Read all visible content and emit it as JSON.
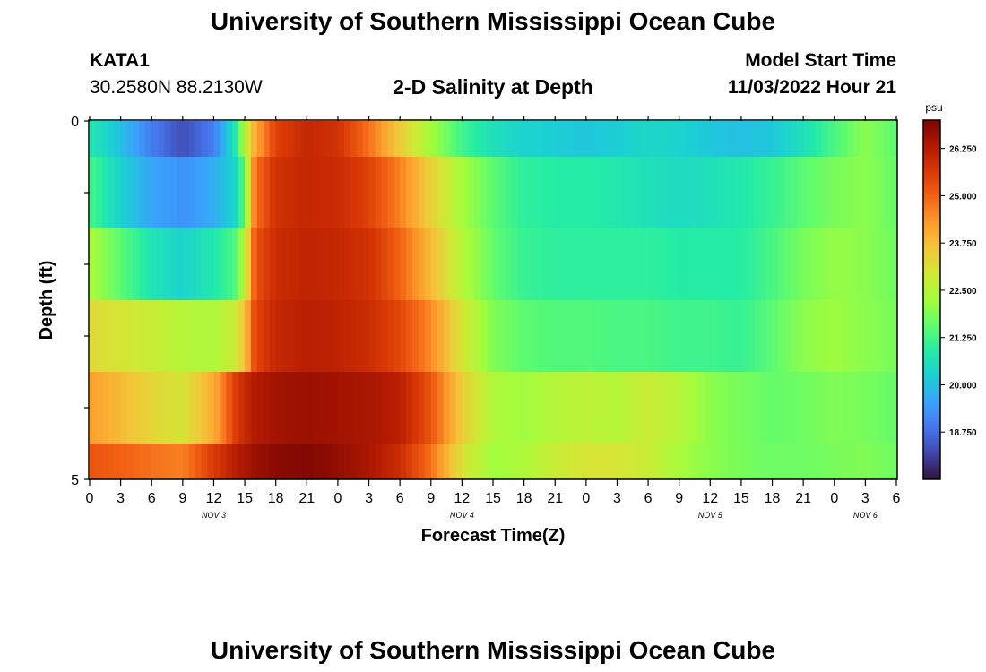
{
  "page": {
    "title": "University of Southern Mississippi Ocean Cube",
    "station_name": "KATA1",
    "station_coords": "30.2580N  88.2130W",
    "plot_title": "2-D Salinity at Depth",
    "model_start_label": "Model Start Time",
    "model_start_value": "11/03/2022 Hour 21",
    "repeated_title": "University of Southern Mississippi Ocean Cube"
  },
  "chart_data": {
    "type": "heatmap",
    "title": "2-D Salinity at Depth",
    "xlabel": "Forecast Time(Z)",
    "ylabel": "Depth (ft)",
    "ylim": [
      0,
      5
    ],
    "y_tick_labels": [
      "0",
      "5"
    ],
    "x_tick_labels": [
      "0",
      "3",
      "6",
      "9",
      "12",
      "15",
      "18",
      "21",
      "0",
      "3",
      "6",
      "9",
      "12",
      "15",
      "18",
      "21",
      "0",
      "3",
      "6",
      "9",
      "12",
      "15",
      "18",
      "21",
      "0",
      "3",
      "6"
    ],
    "day_labels": [
      {
        "label": "NOV 3",
        "tick_index": 4
      },
      {
        "label": "NOV 4",
        "tick_index": 12
      },
      {
        "label": "NOV 5",
        "tick_index": 20
      },
      {
        "label": "NOV 6",
        "tick_index": 25
      }
    ],
    "time_hours_since_start": [
      0,
      78
    ],
    "depth_rows_ft": [
      0.25,
      1.0,
      2.0,
      3.0,
      4.0,
      4.75
    ],
    "x_knots_hours": [
      0,
      3,
      6,
      9,
      12,
      14,
      15,
      16,
      18,
      21,
      24,
      27,
      30,
      33,
      36,
      39,
      42,
      45,
      48,
      51,
      54,
      57,
      60,
      63,
      66,
      69,
      72,
      75,
      78
    ],
    "salinity_psu_rows": [
      [
        20.8,
        20.0,
        19.0,
        18.3,
        19.0,
        20.6,
        22.5,
        24.0,
        25.5,
        26.0,
        25.8,
        24.8,
        23.5,
        22.3,
        21.2,
        20.6,
        20.3,
        20.2,
        20.1,
        20.2,
        20.4,
        20.3,
        20.1,
        20.0,
        20.1,
        20.6,
        21.3,
        22.0,
        21.5
      ],
      [
        21.3,
        20.3,
        19.6,
        19.3,
        19.7,
        20.3,
        21.5,
        24.8,
        25.8,
        26.0,
        25.9,
        25.5,
        24.6,
        23.4,
        22.3,
        21.5,
        21.0,
        20.9,
        20.9,
        20.8,
        20.6,
        20.5,
        20.6,
        20.8,
        21.1,
        21.5,
        21.8,
        22.0,
        21.6
      ],
      [
        22.4,
        21.5,
        20.7,
        20.3,
        20.8,
        21.3,
        22.5,
        25.2,
        25.9,
        26.1,
        26.0,
        25.8,
        25.0,
        23.8,
        22.5,
        21.6,
        21.1,
        21.0,
        21.0,
        21.0,
        21.0,
        20.9,
        20.9,
        20.9,
        21.3,
        21.8,
        22.1,
        22.0,
        21.7
      ],
      [
        23.2,
        23.0,
        22.8,
        22.5,
        22.4,
        22.8,
        23.6,
        25.4,
        26.0,
        26.2,
        26.1,
        25.9,
        25.4,
        24.5,
        23.0,
        21.9,
        21.5,
        21.4,
        21.4,
        21.3,
        21.3,
        21.2,
        21.2,
        21.1,
        21.5,
        22.0,
        22.2,
        22.0,
        21.8
      ],
      [
        24.2,
        23.8,
        23.3,
        23.0,
        24.0,
        25.5,
        26.0,
        26.3,
        26.5,
        26.6,
        26.5,
        26.4,
        26.2,
        25.2,
        23.5,
        22.4,
        22.2,
        22.5,
        22.6,
        22.5,
        22.8,
        22.5,
        22.0,
        21.8,
        21.6,
        21.7,
        21.9,
        21.8,
        21.6
      ],
      [
        25.2,
        25.0,
        24.8,
        24.6,
        25.6,
        26.2,
        26.4,
        26.6,
        26.8,
        26.9,
        26.7,
        26.4,
        25.9,
        24.8,
        23.1,
        22.2,
        22.4,
        22.8,
        23.0,
        23.0,
        22.8,
        22.3,
        22.0,
        21.8,
        21.7,
        21.7,
        21.8,
        21.9,
        21.7
      ]
    ],
    "colorbar": {
      "unit": "psu",
      "range": [
        17.5,
        27.0
      ],
      "tick_labels": [
        "26.250",
        "25.000",
        "23.750",
        "22.500",
        "21.250",
        "20.000",
        "18.750"
      ],
      "colors": [
        "#30123b",
        "#4145ab",
        "#4675ed",
        "#39a2fc",
        "#1bcfd4",
        "#24eca6",
        "#61fc6c",
        "#a4fc3b",
        "#d1e834",
        "#f3c63a",
        "#fe9b2d",
        "#f36315",
        "#d93806",
        "#b11901",
        "#7a0402"
      ]
    }
  }
}
